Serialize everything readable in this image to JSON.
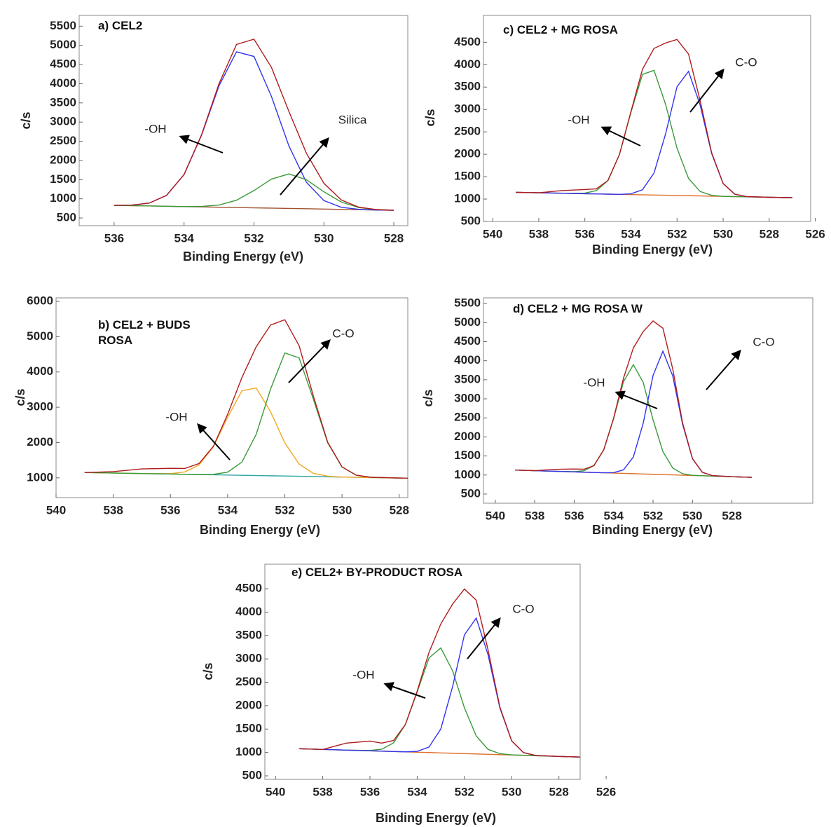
{
  "chart_data": [
    {
      "type": "line",
      "title": "a) CEL2",
      "xlabel": "Binding Energy (eV)",
      "ylabel": "c/s",
      "annotations": [
        "-OH",
        "Silica"
      ],
      "xlim": [
        537,
        527.6
      ],
      "ylim": [
        300,
        5780
      ],
      "xticks": [
        536,
        534,
        532,
        530,
        528
      ],
      "yticks": [
        500,
        1000,
        1500,
        2000,
        2500,
        3000,
        3500,
        4000,
        4500,
        5000,
        5500
      ],
      "x": [
        536,
        535.5,
        535,
        534.5,
        534,
        533.5,
        533,
        532.5,
        532,
        531.5,
        531,
        530.5,
        530,
        529.5,
        529,
        528.5,
        528
      ],
      "series": [
        {
          "color": "#a0522d",
          "values": [
            830,
            822,
            814,
            806,
            797,
            789,
            781,
            773,
            765,
            757,
            749,
            741,
            733,
            724,
            716,
            708,
            700
          ]
        },
        {
          "color": "#3333ee",
          "values": [
            832,
            836,
            887,
            1090,
            1632,
            2657,
            3945,
            4832,
            4711,
            3668,
            2376,
            1430,
            954,
            778,
            726,
            708,
            700
          ]
        },
        {
          "color": "#3a9a3a",
          "values": [
            830,
            822,
            814,
            806,
            797,
            801,
            837,
            963,
            1215,
            1514,
            1649,
            1498,
            1183,
            914,
            772,
            720,
            702
          ]
        },
        {
          "color": "#b01c1c",
          "values": [
            832,
            836,
            887,
            1090,
            1632,
            2669,
            4001,
            5022,
            5161,
            4425,
            3276,
            2187,
            1404,
            968,
            782,
            720,
            702
          ]
        }
      ]
    },
    {
      "type": "line",
      "title": "b) CEL2 + BUDS ROSA",
      "xlabel": "Binding Energy (eV)",
      "ylabel": "c/s",
      "annotations": [
        "C-O",
        "-OH"
      ],
      "xlim": [
        540,
        527.7
      ],
      "ylim": [
        440,
        6100
      ],
      "xticks": [
        540,
        538,
        536,
        534,
        532,
        530,
        528
      ],
      "yticks": [
        1000,
        2000,
        3000,
        4000,
        5000,
        6000
      ],
      "x": [
        539,
        538,
        537,
        536,
        535.5,
        535,
        534.5,
        534,
        533.5,
        533,
        532.5,
        532,
        531.5,
        531,
        530.5,
        530,
        529.5,
        529,
        528,
        527
      ],
      "series": [
        {
          "color": "#2aa5a5",
          "values": [
            1150,
            1136,
            1122,
            1108,
            1100,
            1093,
            1086,
            1079,
            1072,
            1065,
            1058,
            1051,
            1044,
            1037,
            1030,
            1023,
            1015,
            1008,
            994,
            980
          ]
        },
        {
          "color": "#f5a623",
          "values": [
            1150,
            1136,
            1122,
            1119,
            1166,
            1364,
            1879,
            2716,
            3469,
            3546,
            2874,
            1992,
            1388,
            1126,
            1047,
            1023,
            1015,
            1008,
            994,
            980
          ]
        },
        {
          "color": "#3a9a3a",
          "values": [
            1150,
            1136,
            1122,
            1108,
            1100,
            1093,
            1098,
            1161,
            1447,
            2235,
            3513,
            4539,
            4399,
            3222,
            1991,
            1310,
            1073,
            1016,
            994,
            980
          ]
        },
        {
          "color": "#b01c1c",
          "values": [
            1150,
            1176,
            1252,
            1269,
            1266,
            1404,
            1891,
            2798,
            3844,
            4716,
            5329,
            5480,
            4743,
            3311,
            2008,
            1310,
            1073,
            1016,
            994,
            980
          ]
        }
      ]
    },
    {
      "type": "line",
      "title": "c) CEL2 + MG ROSA",
      "xlabel": "Binding Energy (eV)",
      "ylabel": "c/s",
      "annotations": [
        "C-O",
        "-OH"
      ],
      "xlim": [
        540.4,
        526.2
      ],
      "ylim": [
        500,
        5100
      ],
      "xticks": [
        540,
        538,
        536,
        534,
        532,
        530,
        528,
        526
      ],
      "yticks": [
        500,
        1000,
        1500,
        2000,
        2500,
        3000,
        3500,
        4000,
        4500
      ],
      "x": [
        539,
        538,
        537,
        536,
        535.5,
        535,
        534.5,
        534,
        533.5,
        533,
        532.5,
        532,
        531.5,
        531,
        530.5,
        530,
        529.5,
        529,
        528,
        527
      ],
      "series": [
        {
          "color": "#e0702a",
          "values": [
            1150,
            1140,
            1130,
            1120,
            1115,
            1110,
            1105,
            1100,
            1095,
            1090,
            1085,
            1080,
            1075,
            1070,
            1065,
            1060,
            1055,
            1050,
            1040,
            1030
          ]
        },
        {
          "color": "#3a9a3a",
          "values": [
            1150,
            1140,
            1130,
            1133,
            1189,
            1413,
            1994,
            2936,
            3783,
            3873,
            3121,
            2135,
            1461,
            1170,
            1084,
            1060,
            1055,
            1050,
            1040,
            1030
          ]
        },
        {
          "color": "#3333ee",
          "values": [
            1150,
            1140,
            1130,
            1120,
            1115,
            1110,
            1105,
            1117,
            1208,
            1580,
            2448,
            3508,
            3850,
            3103,
            2020,
            1348,
            1111,
            1057,
            1040,
            1030
          ]
        },
        {
          "color": "#b01c1c",
          "values": [
            1150,
            1140,
            1190,
            1213,
            1229,
            1413,
            1994,
            2953,
            3896,
            4363,
            4484,
            4563,
            4236,
            3203,
            2039,
            1348,
            1111,
            1057,
            1040,
            1030
          ]
        }
      ]
    },
    {
      "type": "line",
      "title": "d) CEL2 + MG ROSA W",
      "xlabel": "Binding Energy (eV)",
      "ylabel": "c/s",
      "annotations": [
        "C-O",
        "-OH"
      ],
      "xlim": [
        540.6,
        523.9
      ],
      "ylim": [
        260,
        5650
      ],
      "xticks": [
        540,
        538,
        536,
        534,
        532,
        530,
        528
      ],
      "yticks": [
        500,
        1000,
        1500,
        2000,
        2500,
        3000,
        3500,
        4000,
        4500,
        5000,
        5500
      ],
      "x": [
        539,
        538,
        537,
        536,
        535.5,
        535,
        534.5,
        534,
        533.5,
        533,
        532.5,
        532,
        531.5,
        531,
        530.5,
        530,
        529.5,
        529,
        528,
        527
      ],
      "series": [
        {
          "color": "#e0702a",
          "values": [
            1130,
            1114,
            1098,
            1082,
            1074,
            1066,
            1059,
            1051,
            1043,
            1035,
            1027,
            1019,
            1011,
            1003,
            995,
            987,
            980,
            972,
            956,
            940
          ]
        },
        {
          "color": "#3a9a3a",
          "values": [
            1130,
            1114,
            1098,
            1088,
            1112,
            1246,
            1662,
            2481,
            3448,
            3895,
            3432,
            2449,
            1614,
            1183,
            1033,
            993,
            980,
            972,
            956,
            940
          ]
        },
        {
          "color": "#3333ee",
          "values": [
            1130,
            1114,
            1098,
            1082,
            1074,
            1066,
            1059,
            1064,
            1135,
            1473,
            2359,
            3614,
            4251,
            3598,
            2327,
            1425,
            1072,
            985,
            956,
            940
          ]
        },
        {
          "color": "#b01c1c",
          "values": [
            1130,
            1114,
            1148,
            1158,
            1152,
            1246,
            1662,
            2494,
            3540,
            4333,
            4764,
            5044,
            4854,
            3778,
            2365,
            1431,
            1072,
            985,
            956,
            940
          ]
        }
      ]
    },
    {
      "type": "line",
      "title": "e) CEL2+ BY-PRODUCT ROSA",
      "xlabel": "Binding Energy (eV)",
      "ylabel": "c/s",
      "annotations": [
        "C-O",
        "-OH"
      ],
      "xlim": [
        540.45,
        527.1
      ],
      "ylim": [
        425,
        5025
      ],
      "xticks": [
        540,
        538,
        536,
        534,
        532,
        530,
        528,
        526
      ],
      "yticks": [
        500,
        1000,
        1500,
        2000,
        2500,
        3000,
        3500,
        4000,
        4500
      ],
      "x": [
        539,
        538,
        537,
        536,
        535.5,
        535,
        534.5,
        534,
        533.5,
        533,
        532.5,
        532,
        531.5,
        531,
        530.5,
        530,
        529.5,
        529,
        528,
        527
      ],
      "series": [
        {
          "color": "#e0702a",
          "values": [
            1080,
            1065,
            1050,
            1035,
            1028,
            1020,
            1013,
            1005,
            998,
            990,
            983,
            975,
            968,
            960,
            953,
            945,
            938,
            930,
            915,
            900
          ]
        },
        {
          "color": "#3a9a3a",
          "values": [
            1080,
            1065,
            1050,
            1042,
            1070,
            1205,
            1596,
            2295,
            3021,
            3234,
            2746,
            1954,
            1352,
            1066,
            974,
            948,
            938,
            930,
            915,
            900
          ]
        },
        {
          "color": "#3333ee",
          "values": [
            1080,
            1065,
            1050,
            1035,
            1028,
            1020,
            1013,
            1023,
            1115,
            1503,
            2410,
            3515,
            3872,
            3087,
            1952,
            1247,
            997,
            937,
            915,
            900
          ]
        },
        {
          "color": "#b01c1c",
          "values": [
            1080,
            1065,
            1200,
            1242,
            1200,
            1255,
            1596,
            2313,
            3138,
            3747,
            4173,
            4494,
            4256,
            3193,
            1973,
            1250,
            997,
            937,
            915,
            900
          ]
        }
      ]
    }
  ]
}
